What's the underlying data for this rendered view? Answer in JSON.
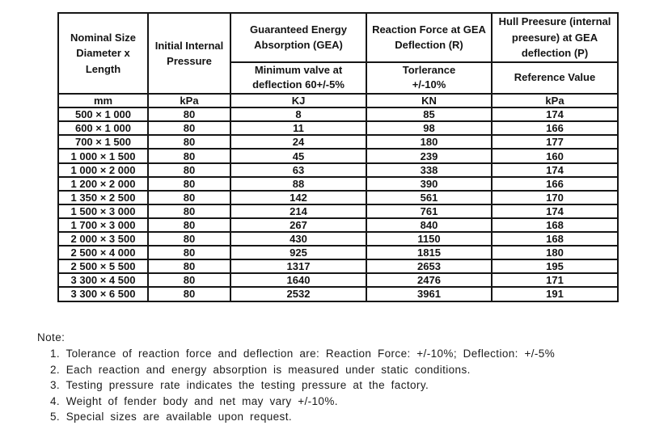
{
  "table": {
    "columns": [
      {
        "title": "Nominal Size\nDiameter x\nLength"
      },
      {
        "title": "Initial Internal\nPressure"
      },
      {
        "title": "Guaranteed Energy\nAbsorption (GEA)",
        "subtitle": "Minimum valve at\ndeflection 60+/-5%"
      },
      {
        "title": "Reaction Force at GEA\nDeflection (R)",
        "subtitle": "Torlerance\n+/-10%"
      },
      {
        "title": "Hull Preesure (internal\npreesure)  at GEA\ndeflection  (P)",
        "subtitle": "Reference Value"
      }
    ],
    "units": [
      "mm",
      "kPa",
      "KJ",
      "KN",
      "kPa"
    ],
    "rows": [
      [
        "500 × 1 000",
        "80",
        "8",
        "85",
        "174"
      ],
      [
        "600 × 1 000",
        "80",
        "11",
        "98",
        "166"
      ],
      [
        "700 × 1 500",
        "80",
        "24",
        "180",
        "177"
      ],
      [
        "1 000 × 1 500",
        "80",
        "45",
        "239",
        "160"
      ],
      [
        "1 000 × 2 000",
        "80",
        "63",
        "338",
        "174"
      ],
      [
        "1 200 × 2 000",
        "80",
        "88",
        "390",
        "166"
      ],
      [
        "1 350 × 2 500",
        "80",
        "142",
        "561",
        "170"
      ],
      [
        "1 500 × 3 000",
        "80",
        "214",
        "761",
        "174"
      ],
      [
        "1 700 × 3 000",
        "80",
        "267",
        "840",
        "168"
      ],
      [
        "2 000 × 3 500",
        "80",
        "430",
        "1150",
        "168"
      ],
      [
        "2 500 × 4 000",
        "80",
        "925",
        "1815",
        "180"
      ],
      [
        "2 500 × 5 500",
        "80",
        "1317",
        "2653",
        "195"
      ],
      [
        "3 300 × 4 500",
        "80",
        "1640",
        "2476",
        "171"
      ],
      [
        "3 300 × 6 500",
        "80",
        "2532",
        "3961",
        "191"
      ]
    ]
  },
  "notes": {
    "label": "Note:",
    "items": [
      "1.  Tolerance of reaction force and deflection are: Reaction Force: +/-10%;  Deflection: +/-5%",
      "2.  Each reaction and energy absorption is measured under static conditions.",
      "3.  Testing pressure rate indicates the testing pressure at the factory.",
      "4.  Weight of fender body and net may vary +/-10%.",
      "5.  Special sizes are available upon request."
    ]
  }
}
